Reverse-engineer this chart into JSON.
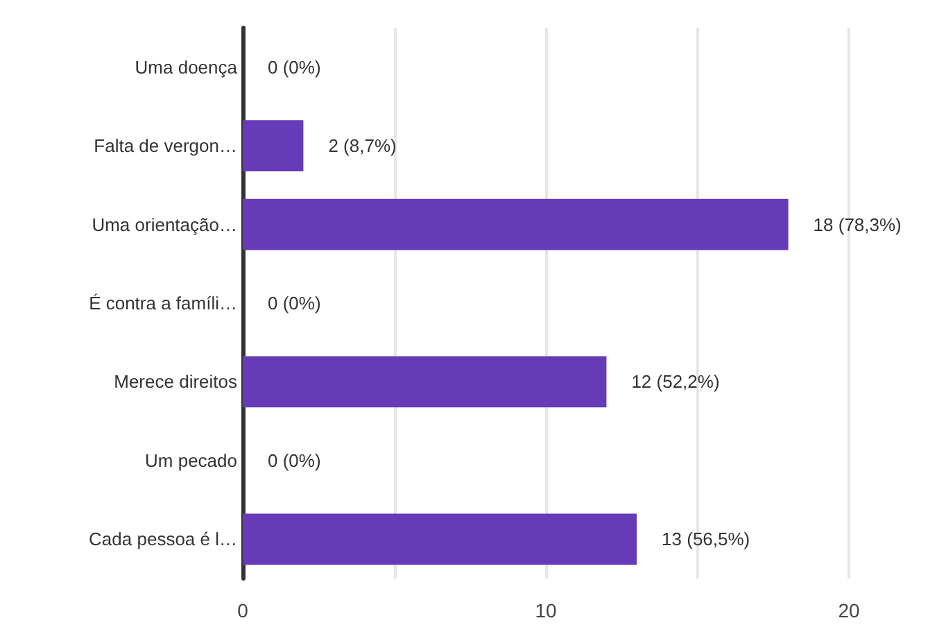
{
  "chart_data": {
    "type": "bar",
    "orientation": "horizontal",
    "categories": [
      "Uma doença",
      "Falta de vergon…",
      "Uma orientação…",
      "É contra a famíli…",
      "Merece direitos",
      "Um pecado",
      "Cada pessoa é l…"
    ],
    "values": [
      0,
      2,
      18,
      0,
      12,
      0,
      13
    ],
    "value_labels": [
      "0 (0%)",
      "2 (8,7%)",
      "18 (78,3%)",
      "0 (0%)",
      "12 (52,2%)",
      "0 (0%)",
      "13 (56,5%)"
    ],
    "color": "#673ab7",
    "xlim": [
      0,
      20
    ],
    "xticks": [
      0,
      {
        "value": 5,
        "label": null
      },
      10,
      {
        "value": 15,
        "label": null
      },
      20
    ],
    "grid": "x"
  }
}
